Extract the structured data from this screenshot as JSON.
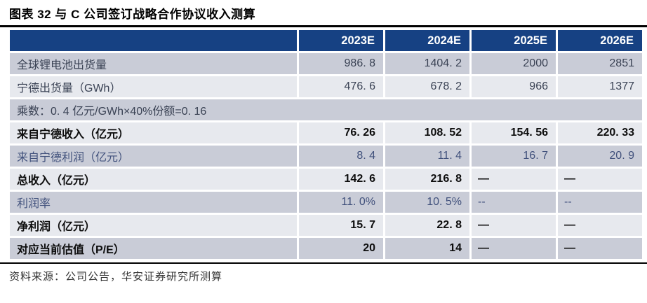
{
  "title": "图表 32 与 C 公司签订战略合作协议收入测算",
  "source": "资料来源：公司公告，华安证券研究所测算",
  "colors": {
    "header_bg": "#164183",
    "row_dark": "#c9ccd7",
    "row_light": "#e7e9ee",
    "bold_text": "#0d0d0d",
    "regular_text": "#3a4254",
    "blue_text": "#41517c",
    "rule": "#000000"
  },
  "chart_data": {
    "type": "table",
    "title": "与 C 公司签订战略合作协议收入测算",
    "columns": [
      "2023E",
      "2024E",
      "2025E",
      "2026E"
    ],
    "rows": [
      {
        "label": "全球锂电池出货量",
        "cells": [
          "986. 8",
          "1404. 2",
          "2000",
          "2851"
        ]
      },
      {
        "label": "宁德出货量（GWh）",
        "cells": [
          "476. 6",
          "678. 2",
          "966",
          "1377"
        ]
      },
      {
        "label": "乘数：0. 4 亿元/GWh×40%份额=0. 16",
        "cells": []
      },
      {
        "label": "来自宁德收入（亿元）",
        "cells": [
          "76. 26",
          "108. 52",
          "154. 56",
          "220. 33"
        ]
      },
      {
        "label": "来自宁德利润（亿元）",
        "cells": [
          "8. 4",
          "11. 4",
          "16. 7",
          "20. 9"
        ]
      },
      {
        "label": "总收入（亿元）",
        "cells": [
          "142. 6",
          "216. 8",
          "—",
          "—"
        ]
      },
      {
        "label": "利润率",
        "cells": [
          "11. 0%",
          "10. 5%",
          "--",
          "--"
        ]
      },
      {
        "label": "净利润（亿元）",
        "cells": [
          "15. 7",
          "22. 8",
          "—",
          "—"
        ]
      },
      {
        "label": "对应当前估值（P/E）",
        "cells": [
          "20",
          "14",
          "—",
          "—"
        ]
      }
    ]
  }
}
